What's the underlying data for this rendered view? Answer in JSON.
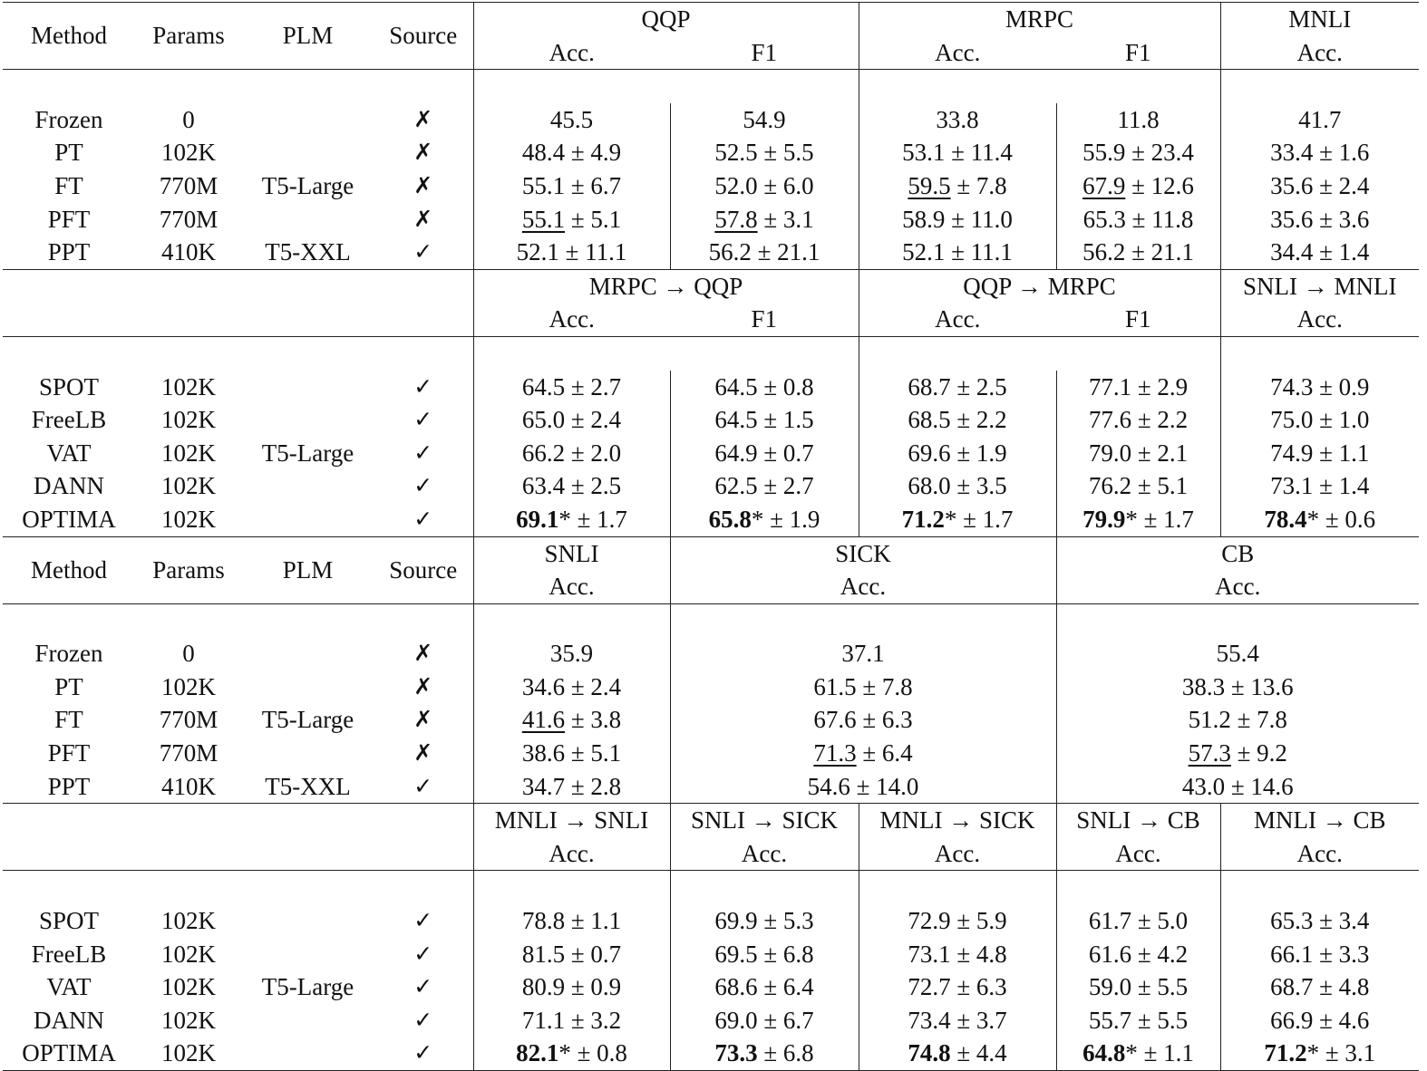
{
  "blocks": [
    {
      "header": {
        "cols": [
          "Method",
          "Params",
          "PLM",
          "Source"
        ],
        "groups": [
          {
            "name": "QQP",
            "metrics": [
              "Acc.",
              "F1"
            ]
          },
          {
            "name": "MRPC",
            "metrics": [
              "Acc.",
              "F1"
            ]
          },
          {
            "name": "MNLI",
            "metrics": [
              "Acc."
            ]
          }
        ]
      },
      "baselines": [
        {
          "method": "Frozen",
          "params": "0",
          "source": "✗",
          "cells": [
            "45.5",
            "54.9",
            "33.8",
            "11.8",
            "41.7"
          ]
        },
        {
          "method": "PT",
          "params": "102K",
          "source": "✗",
          "cells": [
            "48.4 ± 4.9",
            "52.5 ± 5.5",
            "53.1 ± 11.4",
            "55.9 ± 23.4",
            "33.4 ± 1.6"
          ]
        },
        {
          "method": "FT",
          "params": "770M",
          "plm": "T5-Large",
          "source": "✗",
          "cells": [
            "55.1 ± 6.7",
            "52.0 ± 6.0",
            "59.5 ± 7.8",
            "67.9 ± 12.6",
            "35.6 ± 2.4"
          ]
        },
        {
          "method": "PFT",
          "params": "770M",
          "source": "✗",
          "cells": [
            "55.1 ± 5.1",
            "57.8 ± 3.1",
            "58.9 ± 11.0",
            "65.3 ± 11.8",
            "35.6 ± 3.6"
          ]
        },
        {
          "method": "PPT",
          "params": "410K",
          "plm": "T5-XXL",
          "source": "✓",
          "cells": [
            "52.1 ± 11.1",
            "56.2 ± 21.1",
            "52.1 ± 11.1",
            "56.2 ± 21.1",
            "34.4 ± 1.4"
          ]
        }
      ],
      "transfer_header": {
        "groups": [
          {
            "name": "MRPC → QQP",
            "metrics": [
              "Acc.",
              "F1"
            ]
          },
          {
            "name": "QQP → MRPC",
            "metrics": [
              "Acc.",
              "F1"
            ]
          },
          {
            "name": "SNLI → MNLI",
            "metrics": [
              "Acc."
            ]
          }
        ]
      },
      "transfer_plm": "T5-Large",
      "transfer": [
        {
          "method": "SPOT",
          "params": "102K",
          "source": "✓",
          "cells": [
            "64.5 ± 2.7",
            "64.5 ± 0.8",
            "68.7 ± 2.5",
            "77.1 ± 2.9",
            "74.3 ± 0.9"
          ]
        },
        {
          "method": "FreeLB",
          "params": "102K",
          "source": "✓",
          "cells": [
            "65.0 ± 2.4",
            "64.5 ± 1.5",
            "68.5 ± 2.2",
            "77.6 ± 2.2",
            "75.0 ± 1.0"
          ]
        },
        {
          "method": "VAT",
          "params": "102K",
          "source": "✓",
          "cells": [
            "66.2 ± 2.0",
            "64.9 ± 0.7",
            "69.6 ± 1.9",
            "79.0 ± 2.1",
            "74.9 ± 1.1"
          ]
        },
        {
          "method": "DANN",
          "params": "102K",
          "source": "✓",
          "cells": [
            "63.4 ± 2.5",
            "62.5 ± 2.7",
            "68.0 ± 3.5",
            "76.2 ± 5.1",
            "73.1 ± 1.4"
          ]
        },
        {
          "method": "OPTIMA",
          "params": "102K",
          "source": "✓",
          "cells": [
            "69.1* ± 1.7",
            "65.8* ± 1.9",
            "71.2* ± 1.7",
            "79.9* ± 1.7",
            "78.4* ± 0.6"
          ]
        }
      ]
    },
    {
      "header": {
        "cols": [
          "Method",
          "Params",
          "PLM",
          "Source"
        ],
        "groups": [
          {
            "name": "SNLI",
            "metrics": [
              "Acc."
            ]
          },
          {
            "name": "SICK",
            "metrics": [
              "Acc."
            ]
          },
          {
            "name": "CB",
            "metrics": [
              "Acc."
            ]
          }
        ]
      },
      "baselines": [
        {
          "method": "Frozen",
          "params": "0",
          "source": "✗",
          "cells": [
            "35.9",
            "37.1",
            "55.4"
          ]
        },
        {
          "method": "PT",
          "params": "102K",
          "source": "✗",
          "cells": [
            "34.6 ± 2.4",
            "61.5 ± 7.8",
            "38.3 ± 13.6"
          ]
        },
        {
          "method": "FT",
          "params": "770M",
          "plm": "T5-Large",
          "source": "✗",
          "cells": [
            "41.6 ± 3.8",
            "67.6 ± 6.3",
            "51.2 ± 7.8"
          ]
        },
        {
          "method": "PFT",
          "params": "770M",
          "source": "✗",
          "cells": [
            "38.6 ± 5.1",
            "71.3 ± 6.4",
            "57.3 ± 9.2"
          ]
        },
        {
          "method": "PPT",
          "params": "410K",
          "plm": "T5-XXL",
          "source": "✓",
          "cells": [
            "34.7 ± 2.8",
            "54.6 ± 14.0",
            "43.0 ± 14.6"
          ]
        }
      ],
      "transfer_header": {
        "groups": [
          {
            "name": "MNLI → SNLI",
            "metrics": [
              "Acc."
            ]
          },
          {
            "name": "SNLI → SICK",
            "metrics": [
              "Acc."
            ]
          },
          {
            "name": "MNLI → SICK",
            "metrics": [
              "Acc."
            ]
          },
          {
            "name": "SNLI → CB",
            "metrics": [
              "Acc."
            ]
          },
          {
            "name": "MNLI → CB",
            "metrics": [
              "Acc."
            ]
          }
        ]
      },
      "transfer_plm": "T5-Large",
      "transfer": [
        {
          "method": "SPOT",
          "params": "102K",
          "source": "✓",
          "cells": [
            "78.8 ± 1.1",
            "69.9 ± 5.3",
            "72.9 ± 5.9",
            "61.7 ± 5.0",
            "65.3 ± 3.4"
          ]
        },
        {
          "method": "FreeLB",
          "params": "102K",
          "source": "✓",
          "cells": [
            "81.5 ± 0.7",
            "69.5 ± 6.8",
            "73.1 ± 4.8",
            "61.6 ± 4.2",
            "66.1 ± 3.3"
          ]
        },
        {
          "method": "VAT",
          "params": "102K",
          "source": "✓",
          "cells": [
            "80.9 ± 0.9",
            "68.6 ± 6.4",
            "72.7 ± 6.3",
            "59.0 ± 5.5",
            "68.7 ± 4.8"
          ]
        },
        {
          "method": "DANN",
          "params": "102K",
          "source": "✓",
          "cells": [
            "71.1 ± 3.2",
            "69.0 ± 6.7",
            "73.4 ± 3.7",
            "55.7 ± 5.5",
            "66.9 ± 4.6"
          ]
        },
        {
          "method": "OPTIMA",
          "params": "102K",
          "source": "✓",
          "cells": [
            "82.1* ± 0.8",
            "73.3 ± 6.8",
            "74.8 ± 4.4",
            "64.8* ± 1.1",
            "71.2* ± 3.1"
          ]
        }
      ]
    }
  ]
}
